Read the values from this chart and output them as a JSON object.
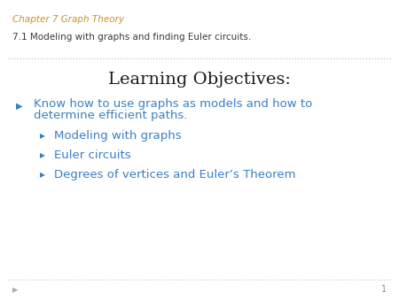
{
  "background_color": "#ffffff",
  "header_line1": "Chapter 7 Graph Theory",
  "header_line2": "7.1 Modeling with graphs and finding Euler circuits.",
  "header_color_line1": "#c8922a",
  "header_color_line2": "#3a3a3a",
  "header_fontsize_line1": 7.5,
  "header_fontsize_line2": 7.5,
  "title": "Learning Objectives:",
  "title_color": "#1a1a1a",
  "title_fontsize": 14,
  "bullet_color": "#3a7fc1",
  "bullet_arrow": "▶",
  "bullet1_text_line1": "Know how to use graphs as models and how to",
  "bullet1_text_line2": "determine efficient paths.",
  "bullet1_fontsize": 9.5,
  "sub_bullets": [
    "Modeling with graphs",
    "Euler circuits",
    "Degrees of vertices and Euler’s Theorem"
  ],
  "sub_bullet_fontsize": 9.5,
  "footer_number": "1",
  "footer_color": "#888888",
  "dotted_line_color": "#bbbbbb"
}
